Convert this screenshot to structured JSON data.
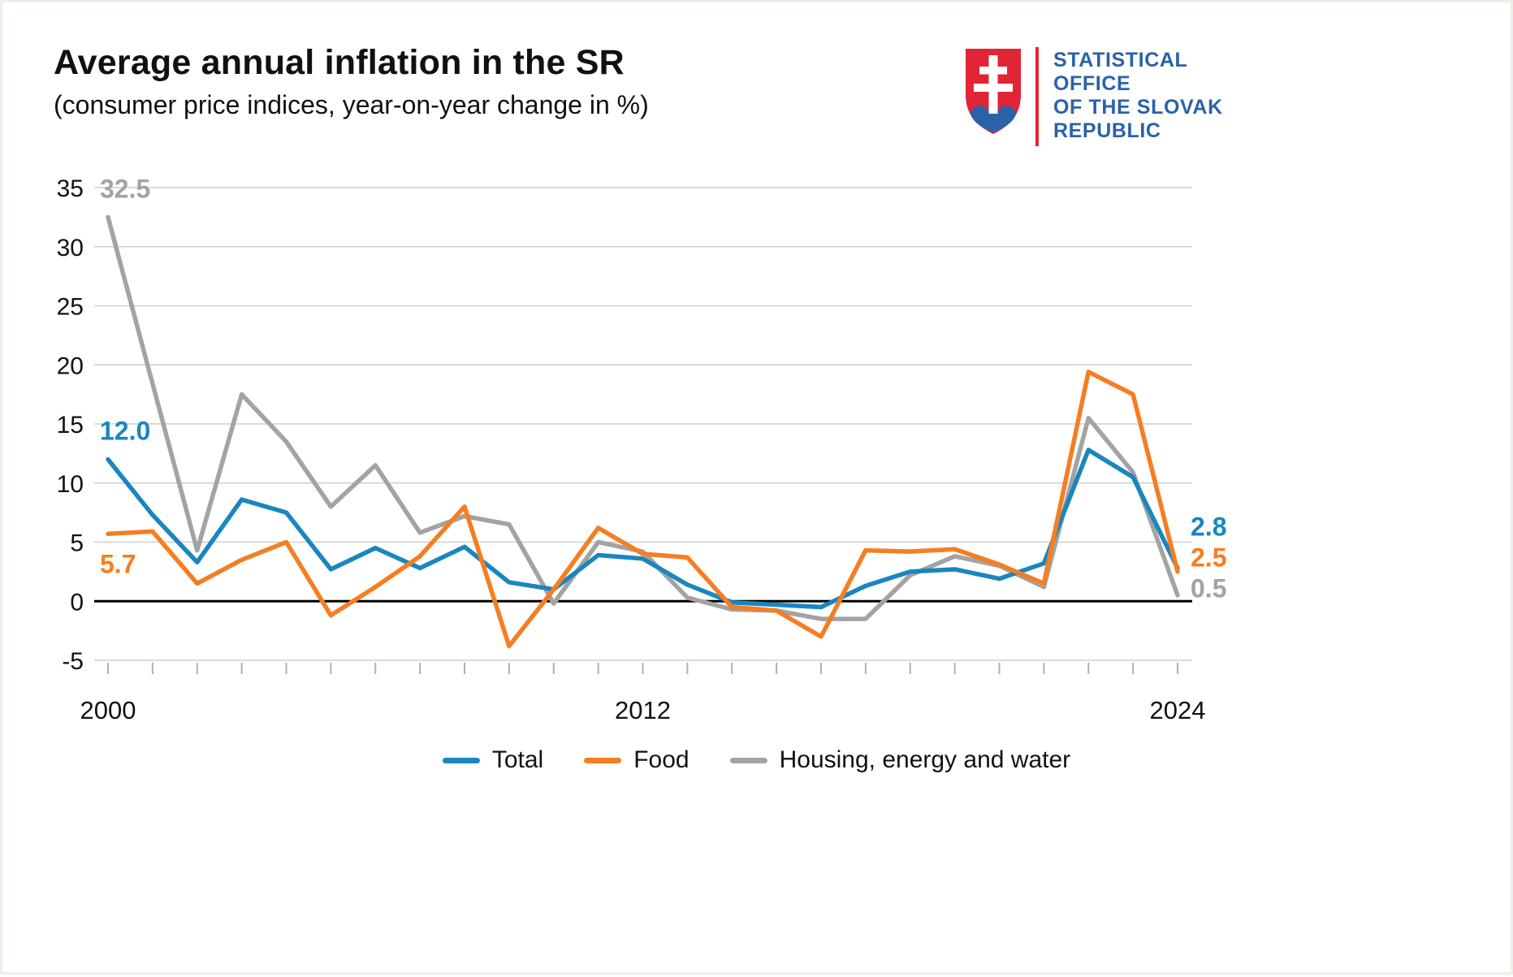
{
  "header": {
    "title": "Average annual inflation in the SR",
    "subtitle": "(consumer price indices, year-on-year change in %)"
  },
  "logo": {
    "name": "Statistical Office of the Slovak Republic",
    "lines": [
      "STATISTICAL",
      "OFFICE",
      "OF THE SLOVAK",
      "REPUBLIC"
    ],
    "colors": {
      "shield_red": "#e22437",
      "cross_white": "#ffffff",
      "hills_blue": "#2a62a9",
      "text_blue": "#2a62a9"
    }
  },
  "chart_data": {
    "type": "line",
    "title": "Average annual inflation in the SR",
    "subtitle": "(consumer price indices, year-on-year change in %)",
    "xlabel": "",
    "ylabel": "",
    "grid": "horizontal",
    "legend_position": "bottom",
    "ylim": [
      -5,
      35
    ],
    "y_ticks": [
      -5,
      0,
      5,
      10,
      15,
      20,
      25,
      30,
      35
    ],
    "x": [
      2000,
      2001,
      2002,
      2003,
      2004,
      2005,
      2006,
      2007,
      2008,
      2009,
      2010,
      2011,
      2012,
      2013,
      2014,
      2015,
      2016,
      2017,
      2018,
      2019,
      2020,
      2021,
      2022,
      2023,
      2024
    ],
    "x_tick_labels": [
      "2000",
      "2012",
      "2024"
    ],
    "series": [
      {
        "name": "Total",
        "color": "#1a86bf",
        "values": [
          12.0,
          7.3,
          3.3,
          8.6,
          7.5,
          2.7,
          4.5,
          2.8,
          4.6,
          1.6,
          1.0,
          3.9,
          3.6,
          1.4,
          -0.1,
          -0.3,
          -0.5,
          1.3,
          2.5,
          2.7,
          1.9,
          3.2,
          12.8,
          10.5,
          2.8
        ]
      },
      {
        "name": "Food",
        "color": "#f57e22",
        "values": [
          5.7,
          5.9,
          1.5,
          3.5,
          5.0,
          -1.2,
          1.2,
          3.8,
          8.0,
          -3.8,
          1.0,
          6.2,
          4.0,
          3.7,
          -0.5,
          -0.8,
          -3.0,
          4.3,
          4.2,
          4.4,
          3.1,
          1.5,
          19.4,
          17.5,
          2.5
        ]
      },
      {
        "name": "Housing, energy and water",
        "color": "#a3a3a3",
        "values": [
          32.5,
          18.4,
          4.3,
          17.5,
          13.5,
          8.0,
          11.5,
          5.8,
          7.2,
          6.5,
          -0.2,
          5.0,
          4.2,
          0.3,
          -0.7,
          -0.8,
          -1.5,
          -1.5,
          2.2,
          3.8,
          3.0,
          1.2,
          15.5,
          10.9,
          0.5
        ]
      }
    ],
    "annotations": [
      {
        "text": "32.5",
        "series": 2,
        "position": "start",
        "va": "above"
      },
      {
        "text": "12.0",
        "series": 0,
        "position": "start",
        "va": "above"
      },
      {
        "text": "5.7",
        "series": 1,
        "position": "start",
        "va": "below"
      },
      {
        "text": "2.8",
        "series": 0,
        "position": "end"
      },
      {
        "text": "2.5",
        "series": 1,
        "position": "end"
      },
      {
        "text": "0.5",
        "series": 2,
        "position": "end"
      }
    ]
  },
  "legend": {
    "items": [
      {
        "label": "Total"
      },
      {
        "label": "Food"
      },
      {
        "label": "Housing, energy and water"
      }
    ]
  }
}
